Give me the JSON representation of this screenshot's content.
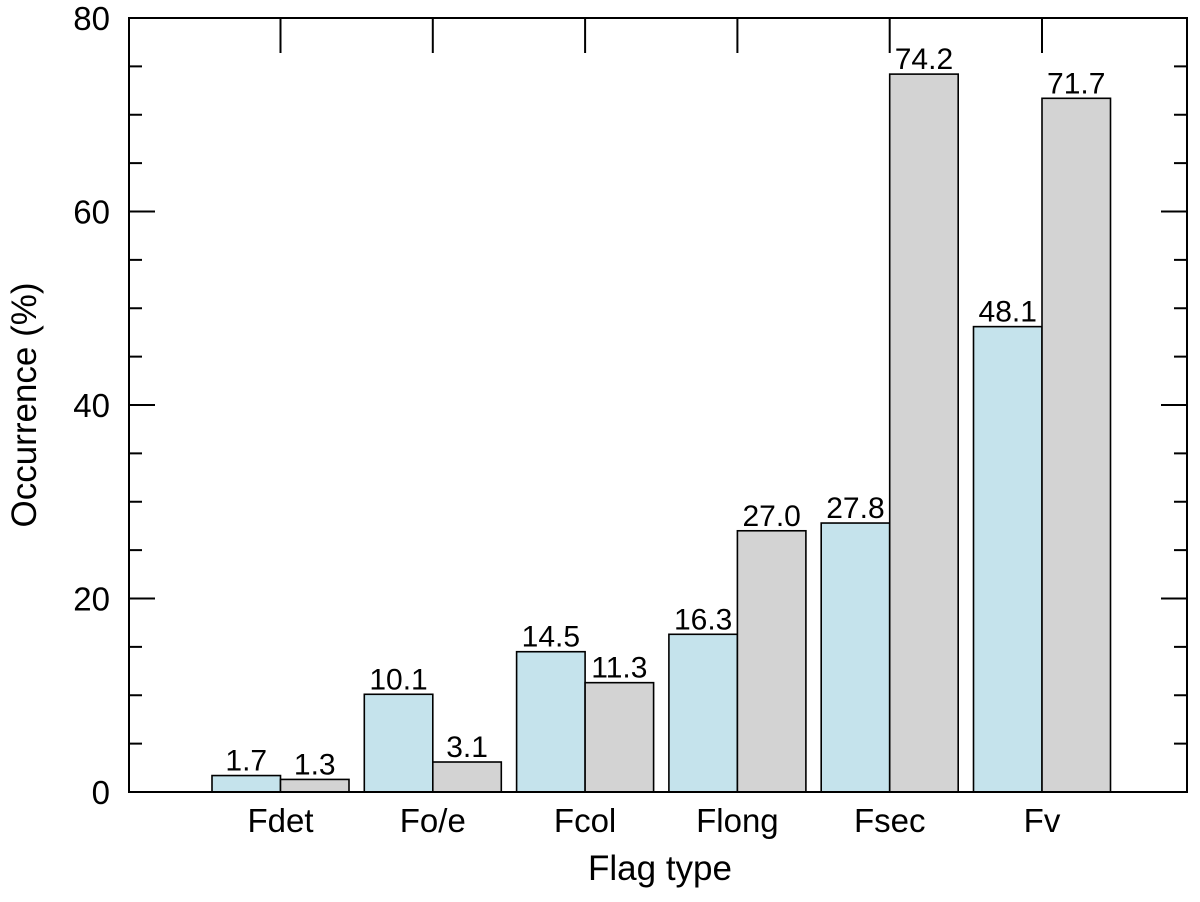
{
  "chart_data": {
    "type": "bar",
    "title": "",
    "xlabel": "Flag type",
    "ylabel": "Occurrence (%)",
    "ylim": [
      0,
      80
    ],
    "yticks": [
      0,
      20,
      40,
      60,
      80
    ],
    "categories": [
      "Fdet",
      "Fo/e",
      "Fcol",
      "Flong",
      "Fsec",
      "Fv"
    ],
    "series": [
      {
        "values": [
          1.7,
          10.1,
          14.5,
          16.3,
          27.8,
          48.1
        ],
        "color": "#c5e3ec"
      },
      {
        "values": [
          1.3,
          3.1,
          11.3,
          27.0,
          74.2,
          71.7
        ],
        "color": "#d3d3d3"
      }
    ],
    "value_labels": [
      [
        "1.7",
        "10.1",
        "14.5",
        "16.3",
        "27.8",
        "48.1"
      ],
      [
        "1.3",
        "3.1",
        "11.3",
        "27.0",
        "74.2",
        "71.7"
      ]
    ],
    "grid": false,
    "legend": "none"
  }
}
